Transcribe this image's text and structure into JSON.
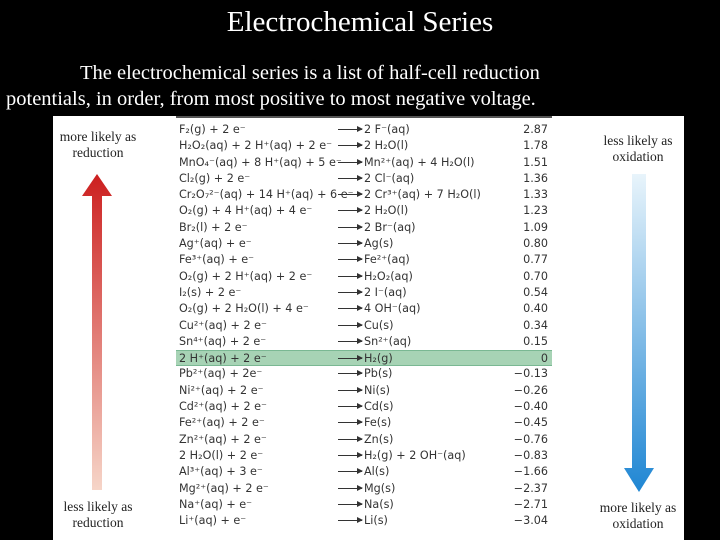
{
  "title": "Electrochemical Series",
  "intro": {
    "line1": "The electrochemical series is a list of half-cell reduction",
    "line2": "potentials, in order, from most positive to most negative voltage."
  },
  "labels": {
    "top_left": "more likely as reduction",
    "bottom_left": "less likely as reduction",
    "top_right": "less likely as oxidation",
    "bottom_right": "more likely as oxidation"
  },
  "colors": {
    "reduction_arrow_top": "#cc1f1f",
    "reduction_arrow_bottom": "#f6d5c8",
    "oxidation_arrow_top": "#e8f4fb",
    "oxidation_arrow_bottom": "#1f86d3",
    "highlight_row": "#a7d3b5"
  },
  "table": {
    "rows": [
      {
        "left": "F₂(g) + 2 e⁻",
        "right": "2 F⁻(aq)",
        "e0": "2.87"
      },
      {
        "left": "H₂O₂(aq) + 2 H⁺(aq) + 2 e⁻",
        "right": "2 H₂O(l)",
        "e0": "1.78"
      },
      {
        "left": "MnO₄⁻(aq) + 8 H⁺(aq) + 5 e⁻",
        "right": "Mn²⁺(aq) + 4 H₂O(l)",
        "e0": "1.51"
      },
      {
        "left": "Cl₂(g) + 2 e⁻",
        "right": "2 Cl⁻(aq)",
        "e0": "1.36"
      },
      {
        "left": "Cr₂O₇²⁻(aq) + 14 H⁺(aq) + 6 e⁻",
        "right": "2 Cr³⁺(aq) + 7 H₂O(l)",
        "e0": "1.33"
      },
      {
        "left": "O₂(g) + 4 H⁺(aq) + 4 e⁻",
        "right": "2 H₂O(l)",
        "e0": "1.23"
      },
      {
        "left": "Br₂(l) + 2 e⁻",
        "right": "2 Br⁻(aq)",
        "e0": "1.09"
      },
      {
        "left": "Ag⁺(aq) + e⁻",
        "right": "Ag(s)",
        "e0": "0.80"
      },
      {
        "left": "Fe³⁺(aq) + e⁻",
        "right": "Fe²⁺(aq)",
        "e0": "0.77"
      },
      {
        "left": "O₂(g) + 2 H⁺(aq) + 2 e⁻",
        "right": "H₂O₂(aq)",
        "e0": "0.70"
      },
      {
        "left": "I₂(s) + 2 e⁻",
        "right": "2 I⁻(aq)",
        "e0": "0.54"
      },
      {
        "left": "O₂(g) + 2 H₂O(l) + 4 e⁻",
        "right": "4 OH⁻(aq)",
        "e0": "0.40"
      },
      {
        "left": "Cu²⁺(aq) + 2 e⁻",
        "right": "Cu(s)",
        "e0": "0.34"
      },
      {
        "left": "Sn⁴⁺(aq) + 2 e⁻",
        "right": "Sn²⁺(aq)",
        "e0": "0.15"
      },
      {
        "left": "2 H⁺(aq) + 2 e⁻",
        "right": "H₂(g)",
        "e0": "0",
        "highlight": true
      },
      {
        "left": "Pb²⁺(aq) + 2e⁻",
        "right": "Pb(s)",
        "e0": "−0.13"
      },
      {
        "left": "Ni²⁺(aq) + 2 e⁻",
        "right": "Ni(s)",
        "e0": "−0.26"
      },
      {
        "left": "Cd²⁺(aq) + 2 e⁻",
        "right": "Cd(s)",
        "e0": "−0.40"
      },
      {
        "left": "Fe²⁺(aq) + 2 e⁻",
        "right": "Fe(s)",
        "e0": "−0.45"
      },
      {
        "left": "Zn²⁺(aq) + 2 e⁻",
        "right": "Zn(s)",
        "e0": "−0.76"
      },
      {
        "left": "2 H₂O(l) + 2 e⁻",
        "right": "H₂(g) + 2 OH⁻(aq)",
        "e0": "−0.83"
      },
      {
        "left": "Al³⁺(aq) + 3 e⁻",
        "right": "Al(s)",
        "e0": "−1.66"
      },
      {
        "left": "Mg²⁺(aq) + 2 e⁻",
        "right": "Mg(s)",
        "e0": "−2.37"
      },
      {
        "left": "Na⁺(aq) + e⁻",
        "right": "Na(s)",
        "e0": "−2.71"
      },
      {
        "left": "Li⁺(aq) + e⁻",
        "right": "Li(s)",
        "e0": "−3.04"
      }
    ]
  }
}
